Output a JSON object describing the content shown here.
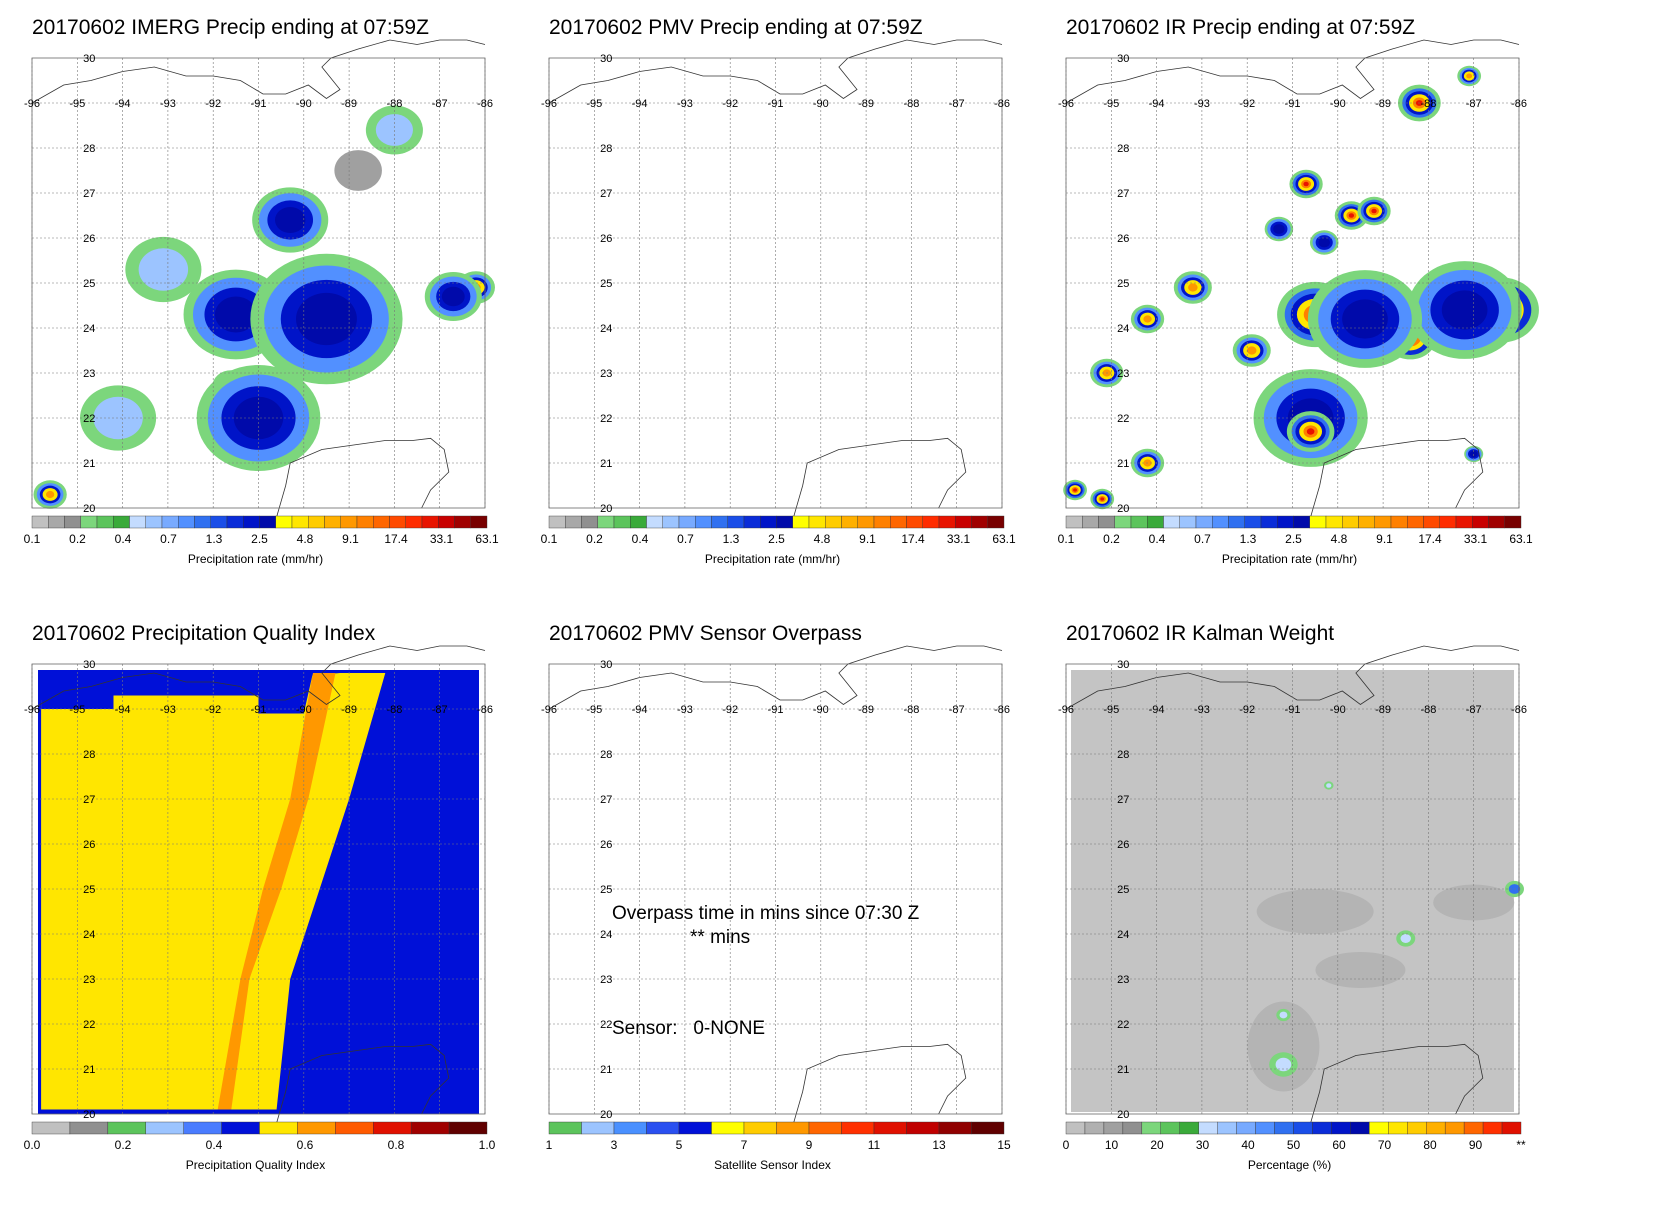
{
  "chart_data": [
    {
      "type": "heatmap",
      "id": "imerg",
      "title": "20170602 IMERG Precip ending at 07:59Z",
      "xticks": [
        "-96",
        "-95",
        "-94",
        "-93",
        "-92",
        "-91",
        "-90",
        "-89",
        "-88",
        "-87",
        "-86"
      ],
      "yticks": [
        "30",
        "28",
        "27",
        "26",
        "25",
        "24",
        "23",
        "22",
        "21",
        "20"
      ],
      "xlim": [
        -96,
        -86
      ],
      "ylim": [
        20,
        30
      ],
      "grid": true,
      "colorbar": {
        "label": "Precipitation rate (mm/hr)",
        "ticks": [
          "0.1",
          "0.2",
          "0.4",
          "0.7",
          "1.3",
          "2.5",
          "4.8",
          "9.1",
          "17.4",
          "33.1",
          "63.1"
        ],
        "colors": [
          "#c0c0c0",
          "#a8a8a8",
          "#909090",
          "#7cd67c",
          "#5cc45c",
          "#3aaa3a",
          "#c4dcff",
          "#9cc4ff",
          "#78aaff",
          "#5290ff",
          "#3070f0",
          "#1a4ee8",
          "#0a2cd8",
          "#0014c8",
          "#000aaa",
          "#ffff00",
          "#ffe600",
          "#ffcc00",
          "#ffb000",
          "#ff9800",
          "#ff8000",
          "#ff6600",
          "#ff4a00",
          "#ff2c00",
          "#e81400",
          "#c80000",
          "#a00000",
          "#780000"
        ]
      },
      "blobs": [
        {
          "lon": -92.1,
          "lat": 24.1,
          "r": 0.35,
          "level": "max"
        },
        {
          "lon": -91.6,
          "lat": 22.7,
          "r": 0.4,
          "level": "high"
        },
        {
          "lon": -91.1,
          "lat": 21.5,
          "r": 0.45,
          "level": "high"
        },
        {
          "lon": -89.6,
          "lat": 23.7,
          "r": 0.5,
          "level": "med"
        },
        {
          "lon": -86.2,
          "lat": 24.9,
          "r": 0.4,
          "level": "med"
        },
        {
          "lon": -95.6,
          "lat": 20.3,
          "r": 0.35,
          "level": "med"
        },
        {
          "lon": -91.5,
          "lat": 24.3,
          "r": 1.1,
          "level": "low"
        },
        {
          "lon": -89.5,
          "lat": 24.2,
          "r": 1.6,
          "level": "low"
        },
        {
          "lon": -91.0,
          "lat": 22.0,
          "r": 1.3,
          "level": "low"
        },
        {
          "lon": -90.3,
          "lat": 26.4,
          "r": 0.8,
          "level": "low"
        },
        {
          "lon": -86.7,
          "lat": 24.7,
          "r": 0.6,
          "level": "low"
        },
        {
          "lon": -94.1,
          "lat": 22.0,
          "r": 0.8,
          "level": "faint"
        },
        {
          "lon": -88.0,
          "lat": 28.4,
          "r": 0.6,
          "level": "faint"
        },
        {
          "lon": -93.1,
          "lat": 25.3,
          "r": 0.8,
          "level": "faint"
        },
        {
          "lon": -88.8,
          "lat": 27.5,
          "r": 0.5,
          "level": "gray"
        }
      ]
    },
    {
      "type": "heatmap",
      "id": "pmv",
      "title": "20170602 PMV Precip ending at 07:59Z",
      "xticks": [
        "-96",
        "-95",
        "-94",
        "-93",
        "-92",
        "-91",
        "-90",
        "-89",
        "-88",
        "-87",
        "-86"
      ],
      "yticks": [
        "30",
        "28",
        "27",
        "26",
        "25",
        "24",
        "23",
        "22",
        "21",
        "20"
      ],
      "xlim": [
        -96,
        -86
      ],
      "ylim": [
        20,
        30
      ],
      "grid": true,
      "colorbar": {
        "label": "Precipitation rate (mm/hr)",
        "ticks": [
          "0.1",
          "0.2",
          "0.4",
          "0.7",
          "1.3",
          "2.5",
          "4.8",
          "9.1",
          "17.4",
          "33.1",
          "63.1"
        ],
        "colors": [
          "#c0c0c0",
          "#a8a8a8",
          "#909090",
          "#7cd67c",
          "#5cc45c",
          "#3aaa3a",
          "#c4dcff",
          "#9cc4ff",
          "#78aaff",
          "#5290ff",
          "#3070f0",
          "#1a4ee8",
          "#0a2cd8",
          "#0014c8",
          "#000aaa",
          "#ffff00",
          "#ffe600",
          "#ffcc00",
          "#ffb000",
          "#ff9800",
          "#ff8000",
          "#ff6600",
          "#ff4a00",
          "#ff2c00",
          "#e81400",
          "#c80000",
          "#a00000",
          "#780000"
        ]
      },
      "blobs": []
    },
    {
      "type": "heatmap",
      "id": "ir",
      "title": "20170602 IR Precip ending at 07:59Z",
      "xticks": [
        "-96",
        "-95",
        "-94",
        "-93",
        "-92",
        "-91",
        "-90",
        "-89",
        "-88",
        "-87",
        "-86"
      ],
      "yticks": [
        "30",
        "28",
        "27",
        "26",
        "25",
        "24",
        "23",
        "22",
        "21",
        "20"
      ],
      "xlim": [
        -96,
        -86
      ],
      "ylim": [
        20,
        30
      ],
      "grid": true,
      "colorbar": {
        "label": "Precipitation rate (mm/hr)",
        "ticks": [
          "0.1",
          "0.2",
          "0.4",
          "0.7",
          "1.3",
          "2.5",
          "4.8",
          "9.1",
          "17.4",
          "33.1",
          "63.1"
        ],
        "colors": [
          "#c0c0c0",
          "#a8a8a8",
          "#909090",
          "#7cd67c",
          "#5cc45c",
          "#3aaa3a",
          "#c4dcff",
          "#9cc4ff",
          "#78aaff",
          "#5290ff",
          "#3070f0",
          "#1a4ee8",
          "#0a2cd8",
          "#0014c8",
          "#000aaa",
          "#ffff00",
          "#ffe600",
          "#ffcc00",
          "#ffb000",
          "#ff9800",
          "#ff8000",
          "#ff6600",
          "#ff4a00",
          "#ff2c00",
          "#e81400",
          "#c80000",
          "#a00000",
          "#780000"
        ]
      },
      "blobs": [
        {
          "lon": -90.6,
          "lat": 22.0,
          "r": 1.2,
          "level": "low"
        },
        {
          "lon": -90.6,
          "lat": 21.7,
          "r": 0.5,
          "level": "high"
        },
        {
          "lon": -90.5,
          "lat": 24.3,
          "r": 0.8,
          "level": "high"
        },
        {
          "lon": -88.4,
          "lat": 23.8,
          "r": 0.55,
          "level": "max"
        },
        {
          "lon": -86.4,
          "lat": 24.4,
          "r": 0.8,
          "level": "max"
        },
        {
          "lon": -87.2,
          "lat": 24.4,
          "r": 1.2,
          "level": "low"
        },
        {
          "lon": -89.4,
          "lat": 24.2,
          "r": 1.2,
          "level": "low"
        },
        {
          "lon": -93.2,
          "lat": 24.9,
          "r": 0.4,
          "level": "med"
        },
        {
          "lon": -94.2,
          "lat": 24.2,
          "r": 0.35,
          "level": "med"
        },
        {
          "lon": -95.1,
          "lat": 23.0,
          "r": 0.35,
          "level": "med"
        },
        {
          "lon": -91.9,
          "lat": 23.5,
          "r": 0.4,
          "level": "med"
        },
        {
          "lon": -90.7,
          "lat": 27.2,
          "r": 0.35,
          "level": "high"
        },
        {
          "lon": -89.7,
          "lat": 26.5,
          "r": 0.35,
          "level": "high"
        },
        {
          "lon": -89.2,
          "lat": 26.6,
          "r": 0.35,
          "level": "high"
        },
        {
          "lon": -88.2,
          "lat": 29.0,
          "r": 0.45,
          "level": "high"
        },
        {
          "lon": -87.1,
          "lat": 29.6,
          "r": 0.25,
          "level": "med"
        },
        {
          "lon": -95.8,
          "lat": 20.4,
          "r": 0.25,
          "level": "high"
        },
        {
          "lon": -95.2,
          "lat": 20.2,
          "r": 0.25,
          "level": "high"
        },
        {
          "lon": -94.2,
          "lat": 21.0,
          "r": 0.35,
          "level": "med"
        },
        {
          "lon": -90.3,
          "lat": 25.9,
          "r": 0.3,
          "level": "low"
        },
        {
          "lon": -91.3,
          "lat": 26.2,
          "r": 0.3,
          "level": "low"
        },
        {
          "lon": -87.0,
          "lat": 21.2,
          "r": 0.2,
          "level": "low"
        }
      ]
    },
    {
      "type": "heatmap",
      "id": "pqi",
      "title": "20170602 Precipitation Quality Index",
      "xticks": [
        "-96",
        "-95",
        "-94",
        "-93",
        "-92",
        "-91",
        "-90",
        "-89",
        "-88",
        "-87",
        "-86"
      ],
      "yticks": [
        "30",
        "28",
        "27",
        "26",
        "25",
        "24",
        "23",
        "22",
        "21",
        "20"
      ],
      "xlim": [
        -96,
        -86
      ],
      "ylim": [
        20,
        30
      ],
      "grid": true,
      "colorbar": {
        "label": "Precipitation Quality Index",
        "ticks": [
          "0.0",
          "0.2",
          "0.4",
          "0.6",
          "0.8",
          "1.0"
        ],
        "colors": [
          "#c0c0c0",
          "#909090",
          "#5cc45c",
          "#9cc4ff",
          "#4a7cff",
          "#0010d8",
          "#ffe600",
          "#ff9800",
          "#ff5a00",
          "#e01000",
          "#a00000",
          "#600000"
        ]
      },
      "zones": [
        {
          "name": "low-quality-band",
          "value": 0.0
        },
        {
          "name": "mid-quality-band",
          "value": 0.55
        },
        {
          "name": "orange-band",
          "value": 0.7
        }
      ]
    },
    {
      "type": "heatmap",
      "id": "sensor",
      "title": "20170602 PMV Sensor Overpass",
      "xticks": [
        "-96",
        "-95",
        "-94",
        "-93",
        "-92",
        "-91",
        "-90",
        "-89",
        "-88",
        "-87",
        "-86"
      ],
      "yticks": [
        "30",
        "28",
        "27",
        "26",
        "25",
        "24",
        "23",
        "22",
        "21",
        "20"
      ],
      "xlim": [
        -96,
        -86
      ],
      "ylim": [
        20,
        30
      ],
      "grid": true,
      "overpass_line1": "Overpass time in mins since 07:30 Z",
      "overpass_line2": "** mins",
      "sensor_line": "Sensor:   0-NONE",
      "colorbar": {
        "label": "Satellite Sensor Index",
        "ticks": [
          "1",
          "3",
          "5",
          "7",
          "9",
          "11",
          "13",
          "15"
        ],
        "colors": [
          "#5cc45c",
          "#9cc4ff",
          "#4a90ff",
          "#2a50f0",
          "#0010d8",
          "#ffff00",
          "#ffcc00",
          "#ff9800",
          "#ff6600",
          "#ff3000",
          "#e01000",
          "#c00000",
          "#900000",
          "#600000"
        ]
      },
      "blobs": []
    },
    {
      "type": "heatmap",
      "id": "kalman",
      "title": "20170602 IR Kalman Weight",
      "xticks": [
        "-96",
        "-95",
        "-94",
        "-93",
        "-92",
        "-91",
        "-90",
        "-89",
        "-88",
        "-87",
        "-86"
      ],
      "yticks": [
        "30",
        "28",
        "27",
        "26",
        "25",
        "24",
        "23",
        "22",
        "21",
        "20"
      ],
      "xlim": [
        -96,
        -86
      ],
      "ylim": [
        20,
        30
      ],
      "grid": true,
      "colorbar": {
        "label": "Percentage (%)",
        "ticks": [
          "0",
          "10",
          "20",
          "30",
          "40",
          "50",
          "60",
          "70",
          "80",
          "90",
          "**"
        ],
        "colors": [
          "#c0c0c0",
          "#b0b0b0",
          "#a0a0a0",
          "#909090",
          "#7cd67c",
          "#5cc45c",
          "#3aaa3a",
          "#c4dcff",
          "#9cc4ff",
          "#78aaff",
          "#5290ff",
          "#3070f0",
          "#1a4ee8",
          "#0a2cd8",
          "#0014c8",
          "#000aaa",
          "#ffff00",
          "#ffe600",
          "#ffcc00",
          "#ffb000",
          "#ff9800",
          "#ff6600",
          "#ff3000",
          "#e01000"
        ]
      },
      "blobs": [
        {
          "lon": -91.2,
          "lat": 21.1,
          "r": 0.3,
          "level": "kalman-green"
        },
        {
          "lon": -91.2,
          "lat": 22.2,
          "r": 0.15,
          "level": "kalman-green"
        },
        {
          "lon": -88.5,
          "lat": 23.9,
          "r": 0.2,
          "level": "kalman-green"
        },
        {
          "lon": -86.1,
          "lat": 25.0,
          "r": 0.2,
          "level": "kalman-blue"
        },
        {
          "lon": -90.2,
          "lat": 27.3,
          "r": 0.1,
          "level": "kalman-green"
        }
      ]
    }
  ]
}
